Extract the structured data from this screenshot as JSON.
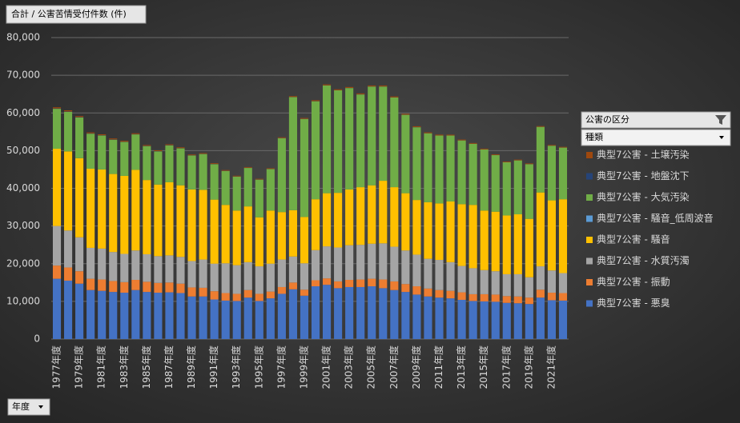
{
  "pivot_buttons": {
    "value_field": "合計 / 公害苦情受付件数 (件)",
    "axis_field": "年度",
    "legend_field": "公害の区分",
    "legend_sub": "種類"
  },
  "chart_data": {
    "type": "stacked_bar",
    "categories": [
      "1977年度",
      null,
      "1979年度",
      null,
      "1981年度",
      null,
      "1983年度",
      null,
      "1985年度",
      null,
      "1987年度",
      null,
      "1989年度",
      null,
      "1991年度",
      null,
      "1993年度",
      null,
      "1995年度",
      null,
      "1997年度",
      null,
      "1999年度",
      null,
      "2001年度",
      null,
      "2003年度",
      null,
      "2005年度",
      null,
      "2007年度",
      null,
      "2009年度",
      null,
      "2011年度",
      null,
      "2013年度",
      null,
      "2015年度",
      null,
      "2017年度",
      null,
      "2019年度",
      null,
      "2021年度",
      null
    ],
    "series": [
      {
        "name": "典型7公害 - 悪臭",
        "color": "#4472c4",
        "values": [
          16000,
          15500,
          14700,
          13000,
          12800,
          12500,
          12300,
          13000,
          12500,
          12300,
          12400,
          12200,
          11300,
          11300,
          10500,
          10200,
          10100,
          11000,
          10100,
          10800,
          12000,
          13200,
          11500,
          14000,
          14400,
          13500,
          13800,
          13800,
          14000,
          13500,
          13000,
          12500,
          11800,
          11300,
          11000,
          10800,
          10400,
          10100,
          10000,
          9900,
          9600,
          9500,
          9300,
          11000,
          10300,
          10200
        ]
      },
      {
        "name": "典型7公害 - 振動",
        "color": "#ed7d31",
        "values": [
          3500,
          3500,
          3300,
          3000,
          3000,
          2900,
          2800,
          2700,
          2700,
          2600,
          2600,
          2500,
          2400,
          2300,
          2200,
          2000,
          1900,
          2000,
          1900,
          1800,
          1800,
          1800,
          1600,
          1600,
          1700,
          1800,
          1900,
          2000,
          2000,
          2300,
          2300,
          2100,
          2200,
          2100,
          2000,
          2000,
          2000,
          1800,
          1900,
          1900,
          1800,
          1800,
          1700,
          2100,
          2000,
          2000
        ]
      },
      {
        "name": "典型7公害 - 水質汚濁",
        "color": "#a5a5a5",
        "values": [
          10500,
          9800,
          9000,
          8200,
          8200,
          7700,
          7500,
          7800,
          7300,
          7100,
          7200,
          7100,
          7000,
          7500,
          7300,
          7900,
          7600,
          7400,
          7300,
          7400,
          7300,
          6900,
          7000,
          8000,
          8500,
          9000,
          9200,
          9200,
          9300,
          9600,
          9200,
          8900,
          8400,
          7900,
          8000,
          7600,
          7000,
          6900,
          6400,
          6200,
          5800,
          5900,
          5400,
          6200,
          5900,
          5300
        ]
      },
      {
        "name": "典型7公害 - 騒音",
        "color": "#ffc000",
        "values": [
          20500,
          21000,
          21000,
          21000,
          21000,
          20700,
          20700,
          21400,
          19700,
          19000,
          19400,
          19000,
          19000,
          18500,
          17000,
          15500,
          14500,
          14800,
          13000,
          14100,
          12600,
          12300,
          12300,
          13500,
          14100,
          14500,
          14800,
          15300,
          15500,
          16600,
          15800,
          15200,
          14500,
          15000,
          15000,
          16100,
          16400,
          16800,
          15800,
          15800,
          15600,
          15900,
          15500,
          19600,
          18600,
          19600
        ]
      },
      {
        "name": "典型7公害 - 騒音_低周波音",
        "color": "#5b9bd5",
        "values": [
          0,
          0,
          0,
          0,
          0,
          0,
          0,
          0,
          0,
          0,
          0,
          0,
          0,
          0,
          0,
          0,
          0,
          0,
          0,
          0,
          0,
          0,
          0,
          0,
          0,
          0,
          0,
          0,
          0,
          0,
          0,
          0,
          0,
          0,
          0,
          0,
          0,
          0,
          0,
          0,
          0,
          0,
          0,
          0,
          0,
          0
        ]
      },
      {
        "name": "典型7公害 - 大気汚染",
        "color": "#70ad47",
        "values": [
          10600,
          10500,
          10800,
          9300,
          9000,
          9100,
          9000,
          9400,
          9000,
          8800,
          9800,
          9800,
          9000,
          9500,
          9400,
          9000,
          9000,
          10200,
          10000,
          11000,
          19600,
          30000,
          26000,
          26000,
          28600,
          27200,
          26900,
          24600,
          26200,
          25000,
          23800,
          20800,
          19300,
          18300,
          18000,
          17500,
          16900,
          16200,
          16200,
          15000,
          14100,
          14300,
          14500,
          17400,
          14500,
          13700
        ]
      },
      {
        "name": "典型7公害 - 地盤沈下",
        "color": "#264478",
        "values": [
          100,
          90,
          90,
          80,
          80,
          80,
          70,
          70,
          70,
          60,
          60,
          60,
          60,
          50,
          50,
          50,
          50,
          50,
          40,
          40,
          40,
          40,
          40,
          40,
          30,
          30,
          30,
          30,
          30,
          30,
          30,
          30,
          30,
          20,
          20,
          20,
          20,
          20,
          20,
          20,
          20,
          20,
          20,
          20,
          20,
          20
        ]
      },
      {
        "name": "典型7公害 - 土壌汚染",
        "color": "#9e480e",
        "values": [
          300,
          300,
          280,
          250,
          250,
          240,
          240,
          230,
          220,
          220,
          220,
          210,
          200,
          200,
          200,
          190,
          190,
          190,
          180,
          180,
          200,
          220,
          220,
          230,
          240,
          240,
          250,
          250,
          250,
          250,
          250,
          240,
          230,
          220,
          220,
          210,
          210,
          200,
          200,
          190,
          190,
          190,
          180,
          190,
          180,
          180
        ]
      }
    ],
    "ylim": [
      0,
      80000
    ],
    "yticks": [
      0,
      {
        "value": 10000,
        "label": "10,000"
      },
      {
        "value": 20000,
        "label": "20,000"
      },
      {
        "value": 30000,
        "label": "30,000"
      },
      {
        "value": 40000,
        "label": "40,000"
      },
      {
        "value": 50000,
        "label": "50,000"
      },
      {
        "value": 60000,
        "label": "60,000"
      },
      {
        "value": 70000,
        "label": "70,000"
      },
      {
        "value": 80000,
        "label": "80,000"
      }
    ],
    "grid": true
  }
}
